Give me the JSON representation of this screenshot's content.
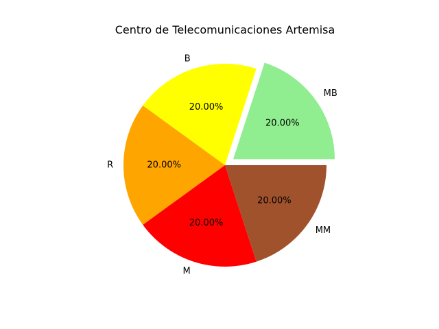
{
  "chart_data": {
    "type": "pie",
    "title": "Centro de Telecomunicaciones Artemisa",
    "categories": [
      "MB",
      "B",
      "R",
      "M",
      "MM"
    ],
    "values": [
      20,
      20,
      20,
      20,
      20
    ],
    "percent_labels": [
      "20.00%",
      "20.00%",
      "20.00%",
      "20.00%",
      "20.00%"
    ],
    "colors": [
      "#90ee90",
      "#ffff00",
      "#ffa500",
      "#ff0000",
      "#a0522d"
    ],
    "explode": [
      0.1,
      0,
      0,
      0,
      0
    ],
    "legend": "none"
  }
}
